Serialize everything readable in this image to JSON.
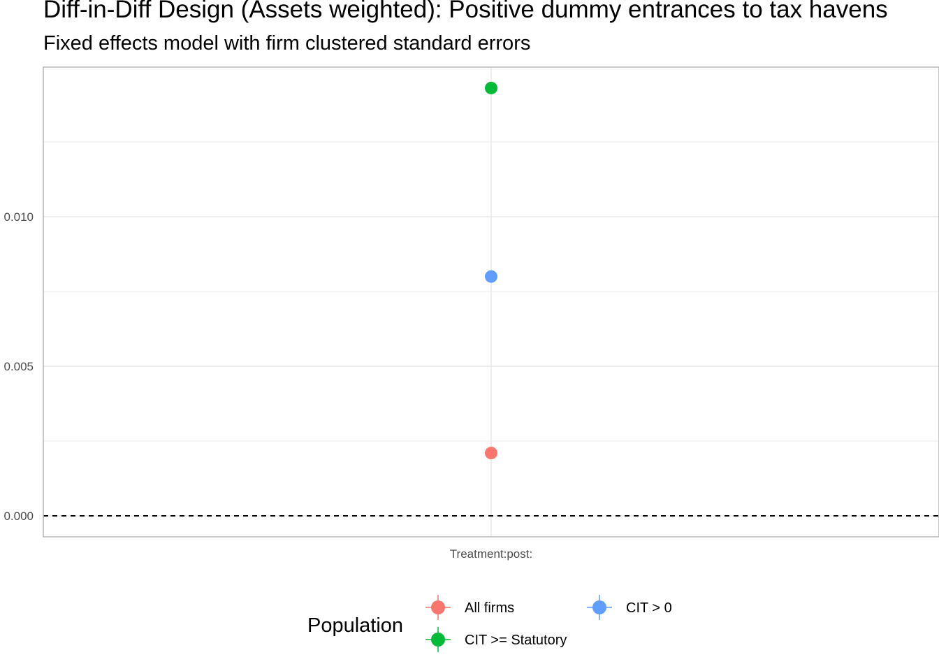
{
  "chart_data": {
    "type": "scatter",
    "title": "Diff-in-Diff Design (Assets weighted): Positive dummy entrances to tax havens",
    "subtitle": "Fixed effects model with firm clustered standard errors",
    "xlabel": "",
    "ylabel": "",
    "categories": [
      "Treatment:post:"
    ],
    "ylim": [
      -0.0007,
      0.015
    ],
    "y_ticks": [
      0.0,
      0.005,
      0.01
    ],
    "y_tick_labels": [
      "0.000",
      "0.005",
      "0.010"
    ],
    "y_minor_ticks": [
      0.0025,
      0.0075,
      0.0125
    ],
    "reference_line": 0.0,
    "grid": true,
    "legend": {
      "title": "Population",
      "position": "bottom"
    },
    "series": [
      {
        "name": "All firms",
        "color": "#F8766D",
        "values": [
          0.0021
        ]
      },
      {
        "name": "CIT >= Statutory",
        "color": "#00BA38",
        "values": [
          0.0143
        ]
      },
      {
        "name": "CIT > 0",
        "color": "#619CFF",
        "values": [
          0.008
        ]
      }
    ]
  }
}
